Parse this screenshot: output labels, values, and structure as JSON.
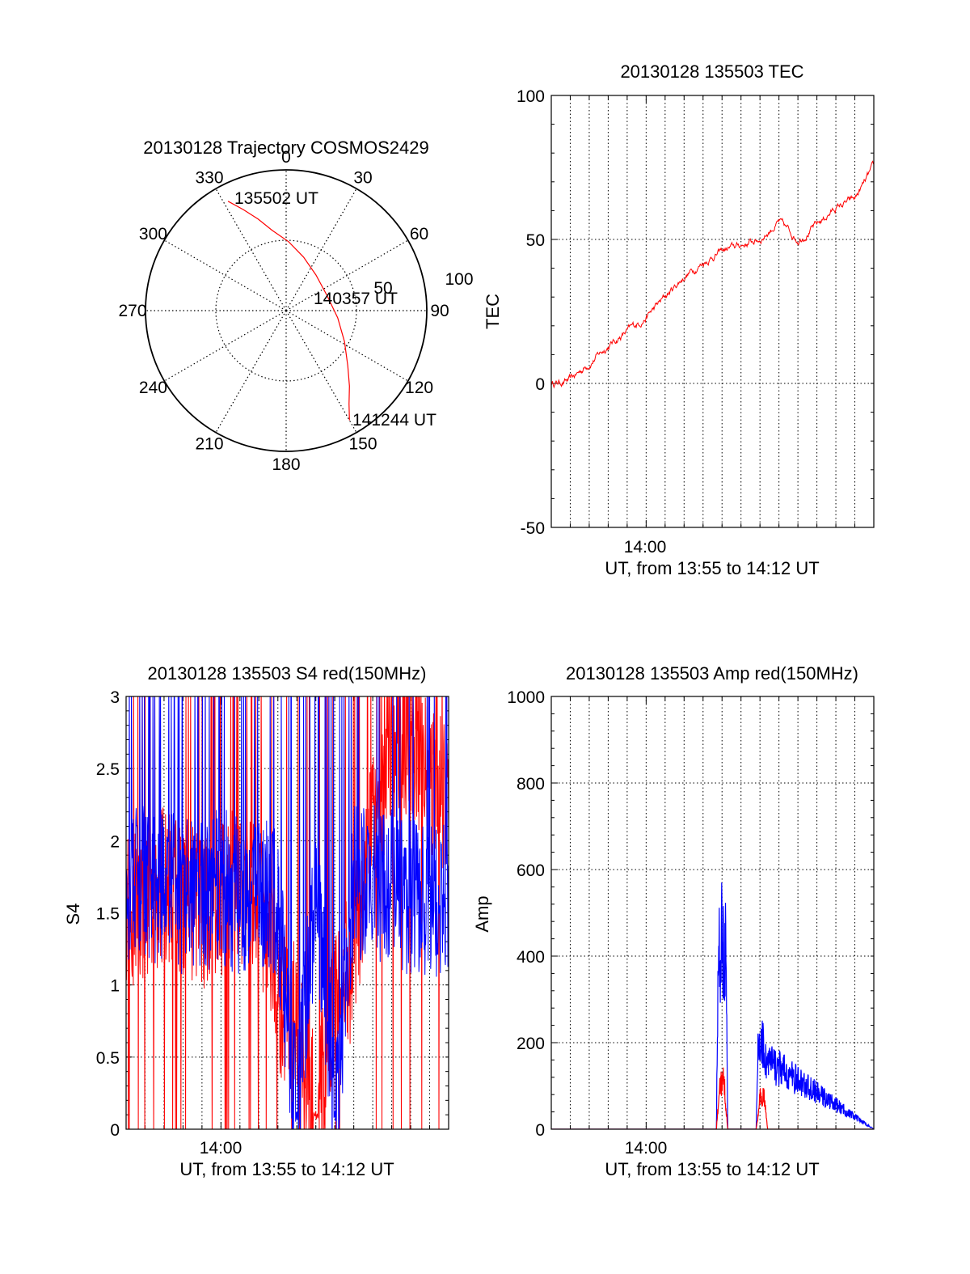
{
  "chart_data": [
    {
      "type": "polar",
      "title": "20130128 Trajectory COSMOS2429",
      "angle_ticks": [
        "0",
        "30",
        "60",
        "90",
        "120",
        "150",
        "180",
        "210",
        "240",
        "270",
        "300",
        "330"
      ],
      "angle_tick_values": [
        0,
        30,
        60,
        90,
        120,
        150,
        180,
        210,
        240,
        270,
        300,
        330
      ],
      "radial_ticks": [
        "50",
        "100"
      ],
      "radial_range": [
        0,
        100
      ],
      "grid": true,
      "trajectory": {
        "color": "#ff0000",
        "points": [
          {
            "az": 332,
            "r": 88
          },
          {
            "az": 337,
            "r": 78
          },
          {
            "az": 343,
            "r": 68
          },
          {
            "az": 350,
            "r": 58
          },
          {
            "az": 2,
            "r": 49
          },
          {
            "az": 18,
            "r": 40
          },
          {
            "az": 40,
            "r": 33
          },
          {
            "az": 70,
            "r": 31
          },
          {
            "az": 98,
            "r": 37
          },
          {
            "az": 118,
            "r": 47
          },
          {
            "az": 132,
            "r": 59
          },
          {
            "az": 140,
            "r": 70
          },
          {
            "az": 146,
            "r": 80
          },
          {
            "az": 150,
            "r": 90
          }
        ]
      },
      "annotations": [
        "135502 UT",
        "140357 UT",
        "141244 UT"
      ]
    },
    {
      "type": "line",
      "title": "20130128 135503 TEC",
      "ylabel": "TEC",
      "xlabel": "UT, from 13:55 to 14:12 UT",
      "xlim": [
        "13:55",
        "14:12"
      ],
      "ylim": [
        -50,
        100
      ],
      "x_tick_labels": [
        "14:00"
      ],
      "y_tick_labels": [
        "-50",
        "0",
        "50",
        "100"
      ],
      "grid": true,
      "series": [
        {
          "color": "#ff0000",
          "x": [
            "13:55",
            "13:56",
            "13:57",
            "13:58",
            "13:59",
            "14:00",
            "14:01",
            "14:02",
            "14:03",
            "14:04",
            "14:05",
            "14:06",
            "14:07",
            "14:08",
            "14:09",
            "14:10",
            "14:11",
            "14:12"
          ],
          "values": [
            0,
            1,
            7,
            13,
            18,
            23,
            30,
            37,
            42,
            46,
            48,
            50,
            56,
            50,
            55,
            61,
            64,
            75
          ]
        }
      ]
    },
    {
      "type": "line",
      "title": "20130128 135503 S4 red(150MHz)",
      "ylabel": "S4",
      "xlabel": "UT, from 13:55 to 14:12 UT",
      "xlim": [
        "13:55",
        "14:12"
      ],
      "ylim": [
        0,
        3
      ],
      "x_tick_labels": [
        "14:00"
      ],
      "y_tick_labels": [
        "0",
        "0.5",
        "1",
        "1.5",
        "2",
        "2.5",
        "3"
      ],
      "grid": true,
      "series": [
        {
          "color": "#ff0000",
          "x": [
            "13:55",
            "13:56",
            "13:57",
            "13:58",
            "13:59",
            "14:00",
            "14:01",
            "14:02",
            "14:03",
            "14:04",
            "14:05",
            "14:06",
            "14:07",
            "14:08",
            "14:09",
            "14:10",
            "14:11",
            "14:12"
          ],
          "values": [
            1.5,
            1.6,
            1.7,
            1.6,
            1.5,
            1.6,
            1.7,
            1.6,
            0.9,
            0.8,
            0.1,
            0.9,
            1.2,
            2.2,
            2.6,
            2.7,
            2.4,
            2.3
          ]
        },
        {
          "color": "#0000ff",
          "x": [
            "13:55",
            "13:56",
            "13:57",
            "13:58",
            "13:59",
            "14:00",
            "14:01",
            "14:02",
            "14:03",
            "14:04",
            "14:05",
            "14:06",
            "14:07",
            "14:08",
            "14:09",
            "14:10",
            "14:11",
            "14:12"
          ],
          "values": [
            1.7,
            1.7,
            1.7,
            1.6,
            1.6,
            1.7,
            1.6,
            1.7,
            1.5,
            0.1,
            1.7,
            0.1,
            1.7,
            1.7,
            1.7,
            1.6,
            1.6,
            1.6
          ]
        }
      ]
    },
    {
      "type": "line",
      "title": "20130128 135503 Amp red(150MHz)",
      "ylabel": "Amp",
      "xlabel": "UT, from 13:55 to 14:12 UT",
      "xlim": [
        "13:55",
        "14:12"
      ],
      "ylim": [
        0,
        1000
      ],
      "x_tick_labels": [
        "14:00"
      ],
      "y_tick_labels": [
        "0",
        "200",
        "400",
        "600",
        "800",
        "1000"
      ],
      "grid": true,
      "series": [
        {
          "color": "#ff0000",
          "x": [
            "13:55",
            "14:03.7",
            "14:03.9",
            "14:04.1",
            "14:04.3",
            "14:05.8",
            "14:06.0",
            "14:06.2",
            "14:06.4",
            "14:12"
          ],
          "values": [
            0,
            0,
            130,
            140,
            0,
            0,
            90,
            100,
            0,
            0
          ]
        },
        {
          "color": "#0000ff",
          "x": [
            "13:55",
            "14:03.7",
            "14:03.8",
            "14:04.0",
            "14:04.2",
            "14:04.3",
            "14:05.8",
            "14:05.9",
            "14:06.1",
            "14:06.3",
            "14:12"
          ],
          "values": [
            0,
            0,
            480,
            550,
            520,
            0,
            0,
            240,
            260,
            200,
            0
          ]
        }
      ]
    }
  ]
}
